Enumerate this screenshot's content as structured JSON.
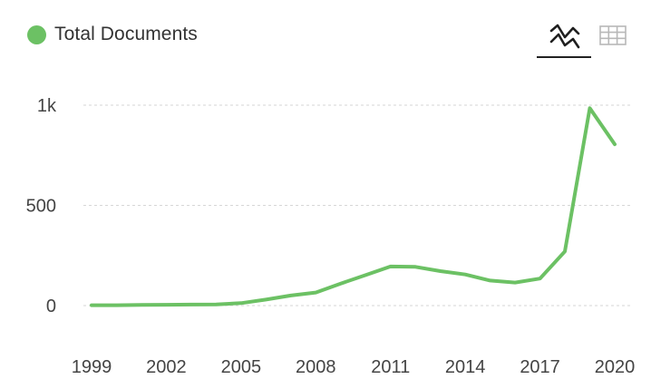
{
  "legend": {
    "label": "Total Documents",
    "color": "#6cc164"
  },
  "toggle": {
    "line_icon": "line-chart-icon",
    "table_icon": "table-grid-icon",
    "active": "line"
  },
  "chart_data": {
    "type": "line",
    "title": "",
    "xlabel": "",
    "ylabel": "",
    "x": [
      1999,
      2000,
      2001,
      2002,
      2003,
      2004,
      2005,
      2006,
      2007,
      2008,
      2009,
      2010,
      2011,
      2012,
      2013,
      2014,
      2015,
      2016,
      2017,
      2018,
      2019,
      2020
    ],
    "series": [
      {
        "name": "Total Documents",
        "color": "#6cc164",
        "values": [
          2,
          2,
          3,
          4,
          5,
          6,
          12,
          30,
          50,
          65,
          110,
          152,
          195,
          193,
          172,
          155,
          125,
          115,
          135,
          270,
          985,
          805
        ]
      }
    ],
    "xlim": [
      1999,
      2020
    ],
    "ylim": [
      0,
      1000
    ],
    "x_ticks": [
      "1999",
      "2002",
      "2005",
      "2008",
      "2011",
      "2014",
      "2017",
      "2020"
    ],
    "y_ticks": [
      "0",
      "500",
      "1k"
    ],
    "y_tick_values": [
      0,
      500,
      1000
    ],
    "grid": "horizontal-dashed",
    "legend_position": "top-left"
  }
}
